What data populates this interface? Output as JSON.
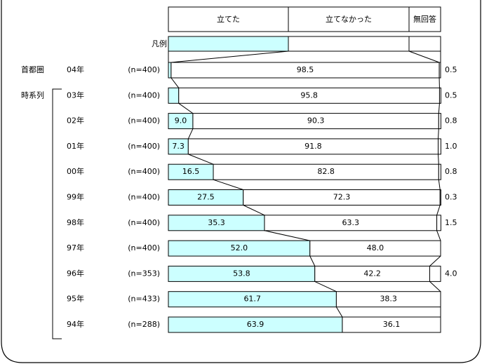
{
  "chart_data": {
    "type": "stacked-bar-horizontal",
    "legend_label": "凡例",
    "categories": [
      "04年",
      "03年",
      "02年",
      "01年",
      "00年",
      "99年",
      "98年",
      "97年",
      "96年",
      "95年",
      "94年"
    ],
    "groups": [
      "首都圏",
      "時系列",
      null,
      null,
      null,
      null,
      null,
      null,
      null,
      null,
      null
    ],
    "sample_sizes": [
      "(n=400)",
      "(n=400)",
      "(n=400)",
      "(n=400)",
      "(n=400)",
      "(n=400)",
      "(n=400)",
      "(n=400)",
      "(n=353)",
      "(n=433)",
      "(n=288)"
    ],
    "xlim": [
      0,
      100
    ],
    "series": [
      {
        "name": "立てた",
        "color": "#ccffff",
        "values": [
          1.0,
          3.8,
          9.0,
          7.3,
          16.5,
          27.5,
          35.3,
          52.0,
          53.8,
          61.7,
          63.9
        ],
        "value_labels": [
          "1.0%",
          "3.8",
          "9.0",
          "7.3",
          "16.5",
          "27.5",
          "35.3",
          "52.0",
          "53.8",
          "61.7",
          "63.9"
        ]
      },
      {
        "name": "立てなかった",
        "color": "#ffffff",
        "values": [
          98.5,
          95.8,
          90.3,
          91.8,
          82.8,
          72.3,
          63.3,
          48.0,
          42.2,
          38.3,
          36.1
        ],
        "value_labels": [
          "98.5",
          "95.8",
          "90.3",
          "91.8",
          "82.8",
          "72.3",
          "63.3",
          "48.0",
          "42.2",
          "38.3",
          "36.1"
        ]
      },
      {
        "name": "無回答",
        "color": "#ffffff",
        "values": [
          0.5,
          0.5,
          0.8,
          1.0,
          0.8,
          0.3,
          1.5,
          null,
          4.0,
          null,
          null
        ],
        "value_labels": [
          "0.5",
          "0.5",
          "0.8",
          "1.0",
          "0.8",
          "0.3",
          "1.5",
          null,
          "4.0",
          null,
          null
        ]
      }
    ]
  }
}
